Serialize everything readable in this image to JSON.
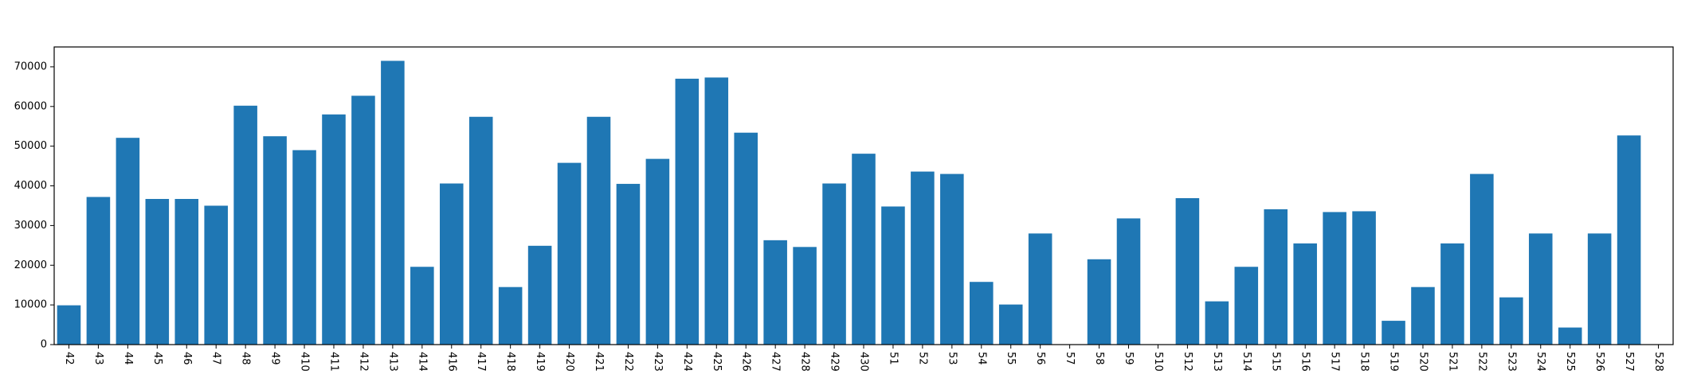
{
  "chart_data": {
    "type": "bar",
    "title": "",
    "xlabel": "",
    "ylabel": "",
    "categories": [
      "42",
      "43",
      "44",
      "45",
      "46",
      "47",
      "48",
      "49",
      "410",
      "411",
      "412",
      "413",
      "414",
      "416",
      "417",
      "418",
      "419",
      "420",
      "421",
      "422",
      "423",
      "424",
      "425",
      "426",
      "427",
      "428",
      "429",
      "430",
      "51",
      "52",
      "53",
      "54",
      "55",
      "56",
      "57",
      "58",
      "59",
      "510",
      "512",
      "513",
      "514",
      "515",
      "516",
      "517",
      "518",
      "519",
      "520",
      "521",
      "522",
      "523",
      "524",
      "525",
      "526",
      "527",
      "528"
    ],
    "values": [
      9900,
      37200,
      52100,
      36700,
      36700,
      35000,
      60200,
      52500,
      49000,
      58000,
      62700,
      71500,
      19600,
      40600,
      57400,
      14500,
      24900,
      45800,
      57400,
      40500,
      46800,
      67000,
      67300,
      53400,
      26300,
      24600,
      40600,
      48100,
      34800,
      43600,
      43000,
      15800,
      10100,
      28000,
      0,
      21500,
      31800,
      0,
      36900,
      10900,
      19600,
      34100,
      25500,
      33400,
      33600,
      6000,
      14500,
      25500,
      43000,
      11900,
      28000,
      4300,
      28000,
      52700,
      0
    ],
    "yticks": [
      "0",
      "10000",
      "20000",
      "30000",
      "40000",
      "50000",
      "60000",
      "70000"
    ],
    "ylim": [
      0,
      75000
    ],
    "grid": false,
    "colors": {
      "bar": "#1f77b4",
      "axis": "#000000",
      "background": "#ffffff"
    }
  }
}
